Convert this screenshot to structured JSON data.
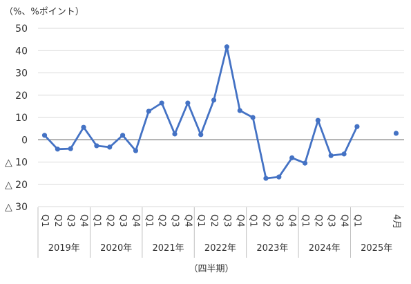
{
  "chart_data": {
    "type": "line",
    "unit_label": "（%、%ポイント）",
    "xlabel": "（四半期）",
    "ylim": [
      -30,
      50
    ],
    "yticks": [
      50,
      40,
      30,
      20,
      10,
      0,
      -10,
      -20,
      -30
    ],
    "ytick_labels": [
      "50",
      "40",
      "30",
      "20",
      "10",
      "0",
      "△ 10",
      "△ 20",
      "△ 30"
    ],
    "grid": true,
    "legend": "none",
    "series_color": "#4472C4",
    "years": [
      {
        "label": "2019年",
        "quarters": [
          "Q1",
          "Q2",
          "Q3",
          "Q4"
        ]
      },
      {
        "label": "2020年",
        "quarters": [
          "Q1",
          "Q2",
          "Q3",
          "Q4"
        ]
      },
      {
        "label": "2021年",
        "quarters": [
          "Q1",
          "Q2",
          "Q3",
          "Q4"
        ]
      },
      {
        "label": "2022年",
        "quarters": [
          "Q1",
          "Q2",
          "Q3",
          "Q4"
        ]
      },
      {
        "label": "2023年",
        "quarters": [
          "Q1",
          "Q2",
          "Q3",
          "Q4"
        ]
      },
      {
        "label": "2024年",
        "quarters": [
          "Q1",
          "Q2",
          "Q3",
          "Q4"
        ]
      },
      {
        "label": "2025年",
        "quarters": [
          "Q1",
          "",
          "",
          "4月"
        ]
      }
    ],
    "values": [
      2.0,
      -4.2,
      -4.0,
      5.6,
      -2.7,
      -3.3,
      2.0,
      -4.9,
      12.8,
      16.5,
      2.6,
      16.5,
      2.3,
      17.8,
      41.7,
      13.1,
      10.0,
      -17.3,
      -16.7,
      -8.1,
      -10.5,
      8.7,
      -7.1,
      -6.4,
      5.9,
      null,
      null,
      2.9
    ]
  }
}
